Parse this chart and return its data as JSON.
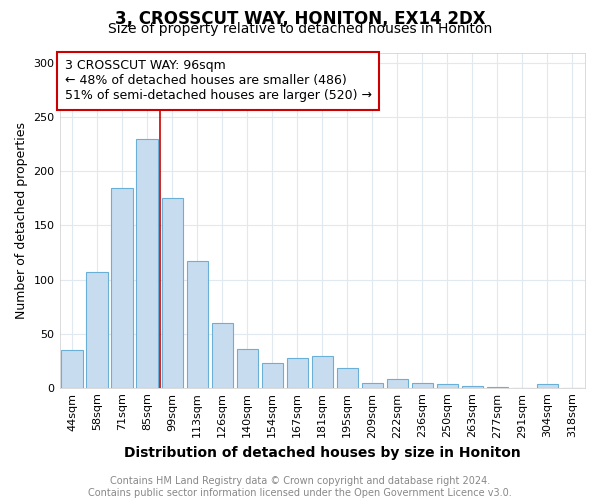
{
  "title1": "3, CROSSCUT WAY, HONITON, EX14 2DX",
  "title2": "Size of property relative to detached houses in Honiton",
  "xlabel": "Distribution of detached houses by size in Honiton",
  "ylabel": "Number of detached properties",
  "categories": [
    "44sqm",
    "58sqm",
    "71sqm",
    "85sqm",
    "99sqm",
    "113sqm",
    "126sqm",
    "140sqm",
    "154sqm",
    "167sqm",
    "181sqm",
    "195sqm",
    "209sqm",
    "222sqm",
    "236sqm",
    "250sqm",
    "263sqm",
    "277sqm",
    "291sqm",
    "304sqm",
    "318sqm"
  ],
  "values": [
    35,
    107,
    185,
    230,
    175,
    117,
    60,
    36,
    23,
    27,
    29,
    18,
    4,
    8,
    4,
    3,
    2,
    1,
    0,
    3,
    0
  ],
  "bar_color": "#c8dcf0",
  "bar_edge_color": "#6aafd6",
  "vline_color": "#cc0000",
  "vline_index": 3.5,
  "annotation_text": "3 CROSSCUT WAY: 96sqm\n← 48% of detached houses are smaller (486)\n51% of semi-detached houses are larger (520) →",
  "box_color": "#ffffff",
  "box_edge_color": "#cc0000",
  "footer_text": "Contains HM Land Registry data © Crown copyright and database right 2024.\nContains public sector information licensed under the Open Government Licence v3.0.",
  "ylim": [
    0,
    310
  ],
  "yticks": [
    0,
    50,
    100,
    150,
    200,
    250,
    300
  ],
  "background_color": "#ffffff",
  "grid_color": "#e0e8f0",
  "title1_fontsize": 12,
  "title2_fontsize": 10,
  "xlabel_fontsize": 10,
  "ylabel_fontsize": 9,
  "tick_fontsize": 8,
  "annotation_fontsize": 9,
  "footer_fontsize": 7,
  "bar_width": 0.85
}
